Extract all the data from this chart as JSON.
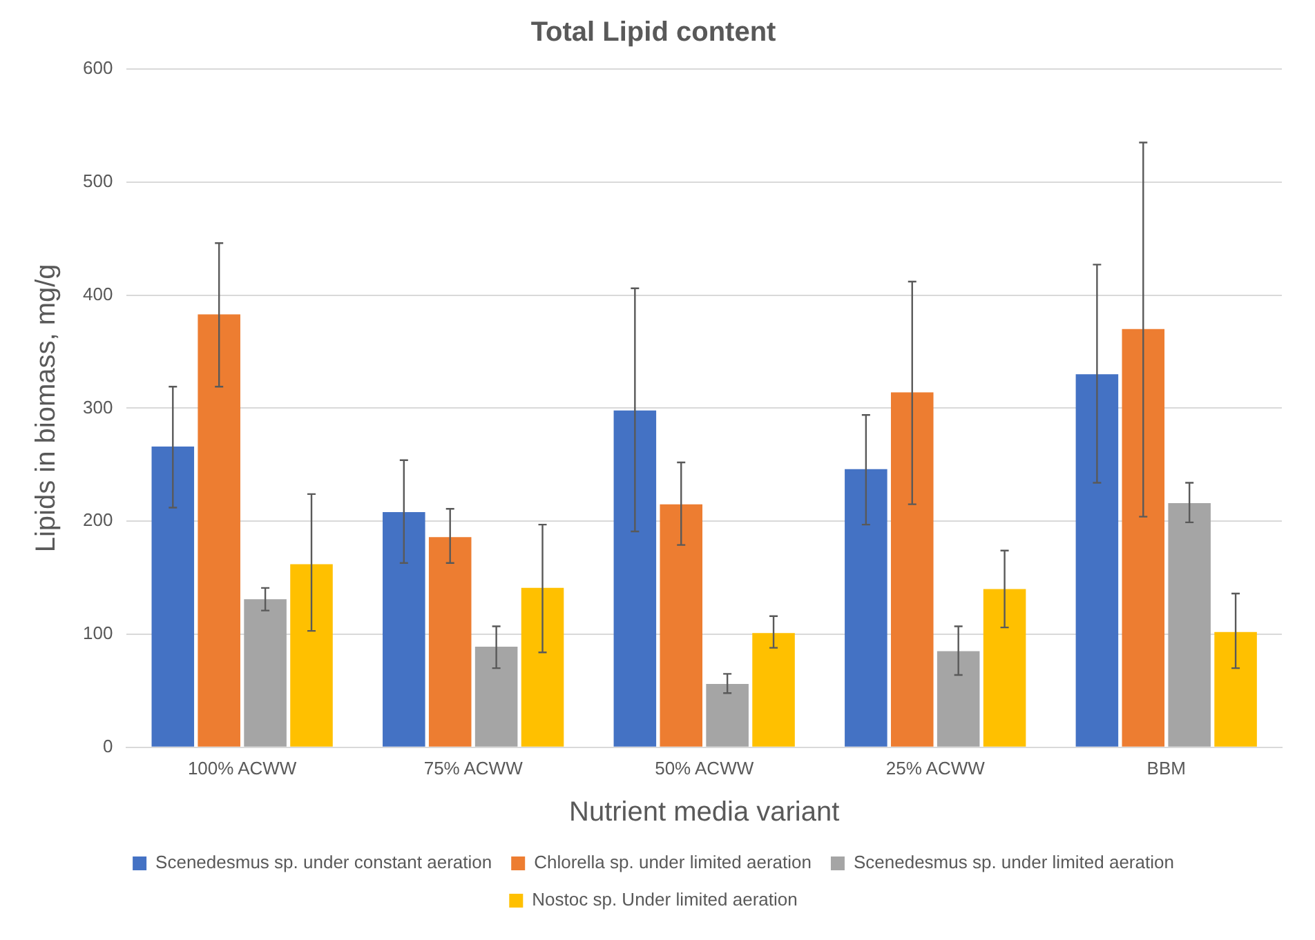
{
  "chart_data": {
    "type": "bar",
    "title": "Total Lipid content",
    "xlabel": "Nutrient media variant",
    "ylabel": "Lipids in biomass, mg/g",
    "categories": [
      "100% ACWW",
      "75% ACWW",
      "50% ACWW",
      "25% ACWW",
      "BBM"
    ],
    "series": [
      {
        "name": "Scenedesmus sp. under constant aeration",
        "color": "#4472c4",
        "values": [
          266,
          208,
          298,
          246,
          330
        ],
        "errors": [
          [
            212,
            319
          ],
          [
            163,
            254
          ],
          [
            191,
            406
          ],
          [
            197,
            294
          ],
          [
            234,
            427
          ]
        ]
      },
      {
        "name": "Chlorella sp. under limited aeration",
        "color": "#ed7d31",
        "values": [
          383,
          186,
          215,
          314,
          370
        ],
        "errors": [
          [
            319,
            446
          ],
          [
            163,
            211
          ],
          [
            179,
            252
          ],
          [
            215,
            412
          ],
          [
            204,
            535
          ]
        ]
      },
      {
        "name": "Scenedesmus sp. under limited aeration",
        "color": "#a5a5a5",
        "values": [
          131,
          89,
          56,
          85,
          216
        ],
        "errors": [
          [
            121,
            141
          ],
          [
            70,
            107
          ],
          [
            48,
            65
          ],
          [
            64,
            107
          ],
          [
            199,
            234
          ]
        ]
      },
      {
        "name": "Nostoc sp. Under limited aeration",
        "color": "#ffc000",
        "values": [
          162,
          141,
          101,
          140,
          102
        ],
        "errors": [
          [
            103,
            224
          ],
          [
            84,
            197
          ],
          [
            88,
            116
          ],
          [
            106,
            174
          ],
          [
            70,
            136
          ]
        ]
      }
    ],
    "ylim": [
      0,
      600
    ],
    "yticks": [
      0,
      100,
      200,
      300,
      400,
      500,
      600
    ],
    "grid": "y",
    "legend": "bottom"
  }
}
